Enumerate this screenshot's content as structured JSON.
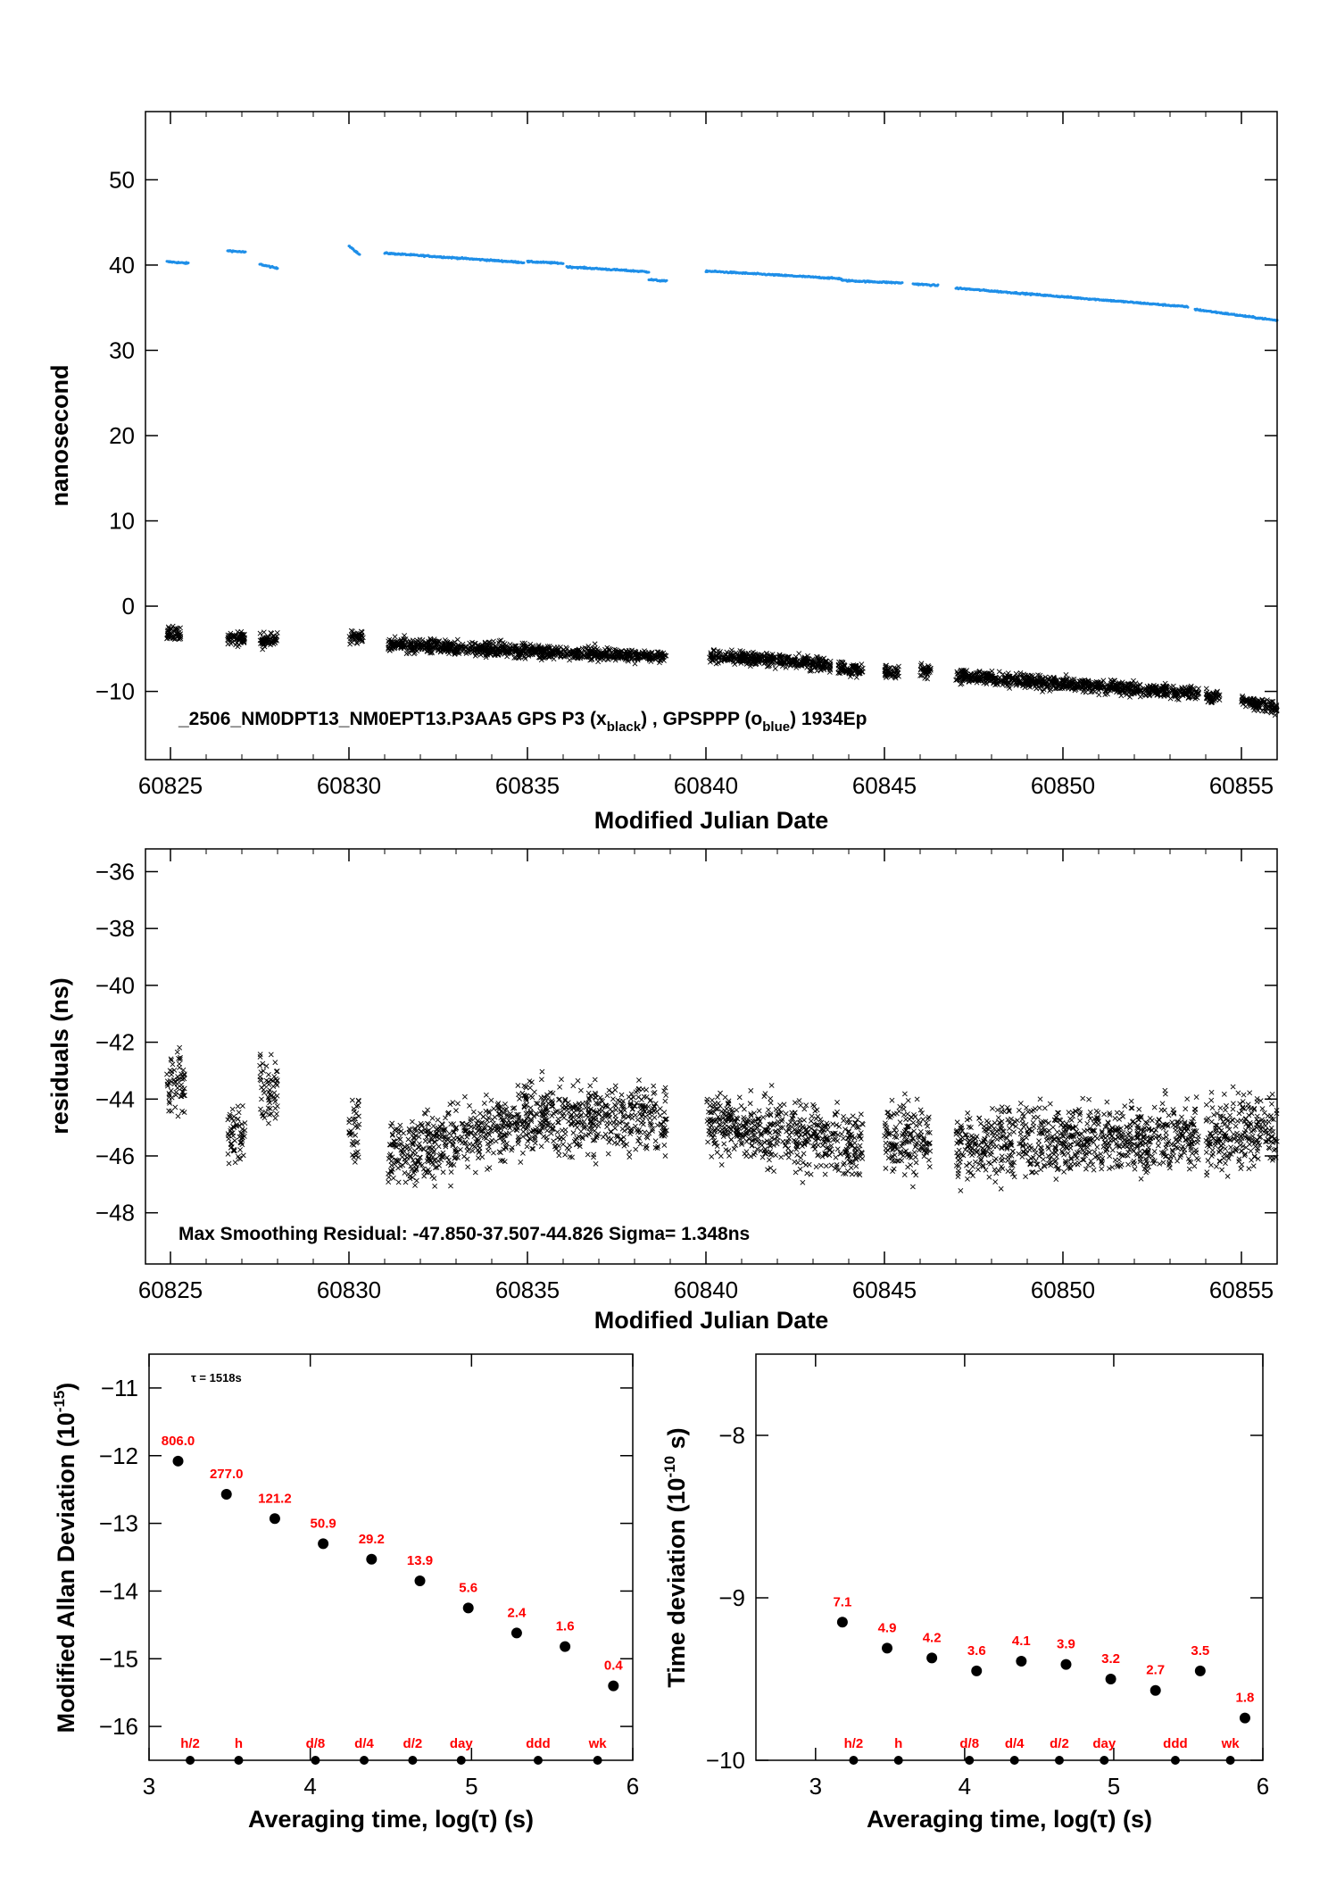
{
  "colors": {
    "black_series": "#000000",
    "blue_series": "#1f8fe8",
    "labels": "#ff0000"
  },
  "chart_data": [
    {
      "type": "scatter",
      "xlabel": "Modified Julian Date",
      "ylabel": "nanosecond",
      "xlim": [
        60824.3,
        60856.0
      ],
      "ylim": [
        -18,
        58
      ],
      "xticks": [
        60825,
        60830,
        60835,
        60840,
        60845,
        60850,
        60855
      ],
      "yticks": [
        -10,
        0,
        10,
        20,
        30,
        40,
        50
      ],
      "annotation": {
        "prefix": "_2506_NM0DPT13_NM0EPT13.P3AA5    GPS P3 (x",
        "sub1": "black",
        "mid": ") ,  GPSPPP (o",
        "sub2": "blue",
        "suffix": ")  1934Ep"
      },
      "series": [
        {
          "marker": "x",
          "color": "black",
          "segments": [
            {
              "x": [
                60824.9,
                60825.3
              ],
              "y": [
                -3.2,
                -3.2
              ]
            },
            {
              "x": [
                60826.6,
                60827.1
              ],
              "y": [
                -3.8,
                -3.8
              ]
            },
            {
              "x": [
                60827.5,
                60828.0
              ],
              "y": [
                -4.0,
                -4.0
              ]
            },
            {
              "x": [
                60830.0,
                60830.4
              ],
              "y": [
                -3.6,
                -3.6
              ]
            },
            {
              "x": [
                60831.1,
                60838.9
              ],
              "y": [
                -4.5,
                -6.0
              ]
            },
            {
              "x": [
                60840.1,
                60841.7
              ],
              "y": [
                -5.8,
                -6.2
              ]
            },
            {
              "x": [
                60841.7,
                60843.5
              ],
              "y": [
                -6.2,
                -7.0
              ]
            },
            {
              "x": [
                60843.7,
                60844.4
              ],
              "y": [
                -7.2,
                -7.6
              ]
            },
            {
              "x": [
                60845.0,
                60845.4
              ],
              "y": [
                -7.6,
                -7.9
              ]
            },
            {
              "x": [
                60846.0,
                60846.3
              ],
              "y": [
                -7.5,
                -7.8
              ]
            },
            {
              "x": [
                60847.0,
                60853.8
              ],
              "y": [
                -8.2,
                -10.2
              ]
            },
            {
              "x": [
                60854.0,
                60854.4
              ],
              "y": [
                -10.5,
                -10.8
              ]
            },
            {
              "x": [
                60855.0,
                60856.0
              ],
              "y": [
                -11.0,
                -12.0
              ]
            }
          ]
        },
        {
          "marker": "o",
          "color": "blue",
          "segments": [
            {
              "x": [
                60824.9,
                60825.5
              ],
              "y": [
                40.4,
                40.2
              ]
            },
            {
              "x": [
                60826.6,
                60827.1
              ],
              "y": [
                41.7,
                41.5
              ]
            },
            {
              "x": [
                60827.5,
                60828.0
              ],
              "y": [
                40.1,
                39.6
              ]
            },
            {
              "x": [
                60830.0,
                60830.3
              ],
              "y": [
                42.3,
                41.2
              ]
            },
            {
              "x": [
                60831.0,
                60834.9
              ],
              "y": [
                41.4,
                40.3
              ]
            },
            {
              "x": [
                60835.0,
                60836.0
              ],
              "y": [
                40.4,
                40.2
              ]
            },
            {
              "x": [
                60836.1,
                60838.4
              ],
              "y": [
                39.8,
                39.2
              ]
            },
            {
              "x": [
                60838.4,
                60838.9
              ],
              "y": [
                38.3,
                38.1
              ]
            },
            {
              "x": [
                60840.0,
                60843.8
              ],
              "y": [
                39.3,
                38.4
              ]
            },
            {
              "x": [
                60843.8,
                60845.5
              ],
              "y": [
                38.2,
                37.9
              ]
            },
            {
              "x": [
                60845.8,
                60846.5
              ],
              "y": [
                37.8,
                37.6
              ]
            },
            {
              "x": [
                60847.0,
                60853.5
              ],
              "y": [
                37.3,
                35.1
              ]
            },
            {
              "x": [
                60853.7,
                60856.0
              ],
              "y": [
                34.8,
                33.5
              ]
            }
          ]
        }
      ]
    },
    {
      "type": "scatter",
      "xlabel": "Modified Julian Date",
      "ylabel": "residuals (ns)",
      "xlim": [
        60824.3,
        60856.0
      ],
      "ylim": [
        -49.8,
        -35.2
      ],
      "xticks": [
        60825,
        60830,
        60835,
        60840,
        60845,
        60850,
        60855
      ],
      "yticks": [
        -48,
        -46,
        -44,
        -42,
        -40,
        -38,
        -36
      ],
      "annotation": "Max Smoothing Residual: -47.850-37.507-44.826  Sigma= 1.348ns",
      "series": [
        {
          "marker": "x",
          "color": "black",
          "segments": [
            {
              "x": [
                60824.9,
                60825.4
              ],
              "y": [
                -43.4,
                -43.4
              ]
            },
            {
              "x": [
                60826.6,
                60827.1
              ],
              "y": [
                -45.3,
                -45.3
              ]
            },
            {
              "x": [
                60827.5,
                60828.0
              ],
              "y": [
                -43.7,
                -43.7
              ]
            },
            {
              "x": [
                60830.0,
                60830.3
              ],
              "y": [
                -45.0,
                -45.0
              ]
            },
            {
              "x": [
                60831.1,
                60834.9
              ],
              "y": [
                -46.0,
                -44.8
              ]
            },
            {
              "x": [
                60834.9,
                60838.9
              ],
              "y": [
                -44.6,
                -44.8
              ]
            },
            {
              "x": [
                60840.0,
                60844.4
              ],
              "y": [
                -44.8,
                -45.6
              ]
            },
            {
              "x": [
                60845.0,
                60846.3
              ],
              "y": [
                -45.2,
                -45.3
              ]
            },
            {
              "x": [
                60847.0,
                60853.8
              ],
              "y": [
                -45.6,
                -45.3
              ]
            },
            {
              "x": [
                60854.0,
                60856.0
              ],
              "y": [
                -45.3,
                -45.1
              ]
            }
          ]
        }
      ]
    },
    {
      "type": "scatter",
      "xlabel": "Averaging time, log(τ) (s)",
      "ylabel": "Modified Allan Deviation (10",
      "ylabel_exp": "-15",
      "ylabel_end": ")",
      "xlim": [
        3,
        6
      ],
      "ylim": [
        -16.5,
        -10.5
      ],
      "xticks": [
        3,
        4,
        5,
        6
      ],
      "yticks": [
        -16,
        -15,
        -14,
        -13,
        -12,
        -11
      ],
      "tau_note": "τ = 1518s",
      "x": [
        3.18,
        3.48,
        3.78,
        4.08,
        4.38,
        4.68,
        4.98,
        5.28,
        5.58,
        5.88
      ],
      "y": [
        -12.08,
        -12.57,
        -12.93,
        -13.3,
        -13.53,
        -13.85,
        -14.25,
        -14.62,
        -14.82,
        -15.4
      ],
      "labels": [
        "806.0",
        "277.0",
        "121.2",
        "50.9",
        "29.2",
        "13.9",
        "5.6",
        "2.4",
        "1.6",
        "0.4"
      ],
      "markers": [
        {
          "label": "h/2",
          "x": 3.255
        },
        {
          "label": "h",
          "x": 3.556
        },
        {
          "label": "d/8",
          "x": 4.032
        },
        {
          "label": "d/4",
          "x": 4.334
        },
        {
          "label": "d/2",
          "x": 4.635
        },
        {
          "label": "day",
          "x": 4.936
        },
        {
          "label": "ddd",
          "x": 5.413
        },
        {
          "label": "wk",
          "x": 5.782
        }
      ]
    },
    {
      "type": "scatter",
      "xlabel": "Averaging time, log(τ) (s)",
      "ylabel": "Time deviation (10",
      "ylabel_exp": "-10",
      "ylabel_end": " s)",
      "xlim": [
        2.6,
        6.0
      ],
      "ylim": [
        -10,
        -7.5
      ],
      "xticks": [
        3,
        4,
        5,
        6
      ],
      "yticks": [
        -10,
        -9,
        -8
      ],
      "x": [
        3.18,
        3.48,
        3.78,
        4.08,
        4.38,
        4.68,
        4.98,
        5.28,
        5.58,
        5.88
      ],
      "y": [
        -9.15,
        -9.31,
        -9.37,
        -9.45,
        -9.39,
        -9.41,
        -9.5,
        -9.57,
        -9.45,
        -9.74
      ],
      "labels": [
        "7.1",
        "4.9",
        "4.2",
        "3.6",
        "4.1",
        "3.9",
        "3.2",
        "2.7",
        "3.5",
        "1.8"
      ],
      "markers": [
        {
          "label": "h/2",
          "x": 3.255
        },
        {
          "label": "h",
          "x": 3.556
        },
        {
          "label": "d/8",
          "x": 4.032
        },
        {
          "label": "d/4",
          "x": 4.334
        },
        {
          "label": "d/2",
          "x": 4.635
        },
        {
          "label": "day",
          "x": 4.936
        },
        {
          "label": "ddd",
          "x": 5.413
        },
        {
          "label": "wk",
          "x": 5.782
        }
      ]
    }
  ]
}
